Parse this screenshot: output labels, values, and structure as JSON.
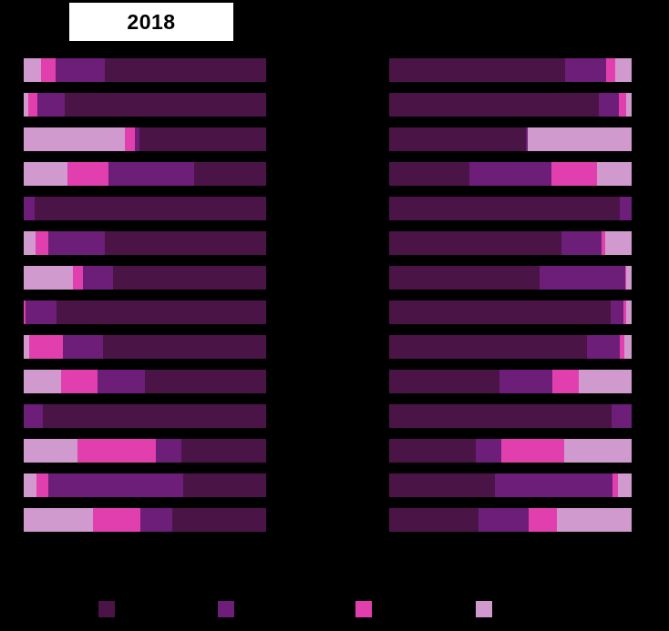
{
  "title": {
    "label": "2018"
  },
  "chart_data": {
    "type": "bar",
    "orientation": "horizontal",
    "stacked": true,
    "background": "#000000",
    "title_box": {
      "text": "2018",
      "background": "#ffffff",
      "text_color": "#000000"
    },
    "colors": {
      "dark": "#4a1447",
      "medium": "#6c1e78",
      "magenta": "#e23fae",
      "light": "#d09ace"
    },
    "value_unit": "percent-of-bar",
    "panels": [
      {
        "name": "left",
        "title": "2018",
        "segment_order": [
          "light",
          "magenta",
          "medium",
          "dark"
        ],
        "rows": [
          [
            7.1,
            6.0,
            20.3,
            66.5
          ],
          [
            1.9,
            3.8,
            11.3,
            83.1
          ],
          [
            41.7,
            4.1,
            1.9,
            52.3
          ],
          [
            18.0,
            16.9,
            35.3,
            29.7
          ],
          [
            0,
            0,
            4.5,
            95.5
          ],
          [
            4.9,
            5.3,
            23.3,
            66.5
          ],
          [
            20.3,
            4.1,
            12.4,
            63.2
          ],
          [
            0,
            0.8,
            12.8,
            86.5
          ],
          [
            2.3,
            13.9,
            16.5,
            67.3
          ],
          [
            15.4,
            15.0,
            19.5,
            50.0
          ],
          [
            0,
            0,
            7.9,
            92.1
          ],
          [
            22.2,
            32.3,
            10.5,
            35.0
          ],
          [
            5.3,
            4.9,
            55.6,
            34.2
          ],
          [
            28.6,
            19.5,
            13.2,
            38.7
          ]
        ]
      },
      {
        "name": "right",
        "title": "",
        "segment_order": [
          "dark",
          "medium",
          "magenta",
          "light"
        ],
        "rows": [
          [
            72.6,
            16.9,
            3.8,
            6.8
          ],
          [
            86.5,
            8.3,
            3.0,
            2.3
          ],
          [
            56.4,
            0.8,
            0,
            42.9
          ],
          [
            33.1,
            33.8,
            18.8,
            14.3
          ],
          [
            95.1,
            4.9,
            0,
            0
          ],
          [
            71.1,
            16.5,
            1.5,
            10.9
          ],
          [
            62.0,
            35.3,
            0.4,
            2.3
          ],
          [
            91.4,
            5.3,
            1.1,
            2.3
          ],
          [
            81.6,
            13.5,
            1.9,
            3.0
          ],
          [
            45.5,
            21.8,
            10.9,
            21.8
          ],
          [
            91.7,
            8.3,
            0,
            0
          ],
          [
            35.7,
            10.5,
            25.9,
            27.8
          ],
          [
            43.6,
            48.5,
            2.3,
            5.6
          ],
          [
            36.8,
            20.7,
            11.7,
            30.8
          ]
        ]
      }
    ],
    "legend": {
      "position": "bottom",
      "swatch_colors": [
        "dark",
        "medium",
        "magenta",
        "light"
      ]
    }
  }
}
